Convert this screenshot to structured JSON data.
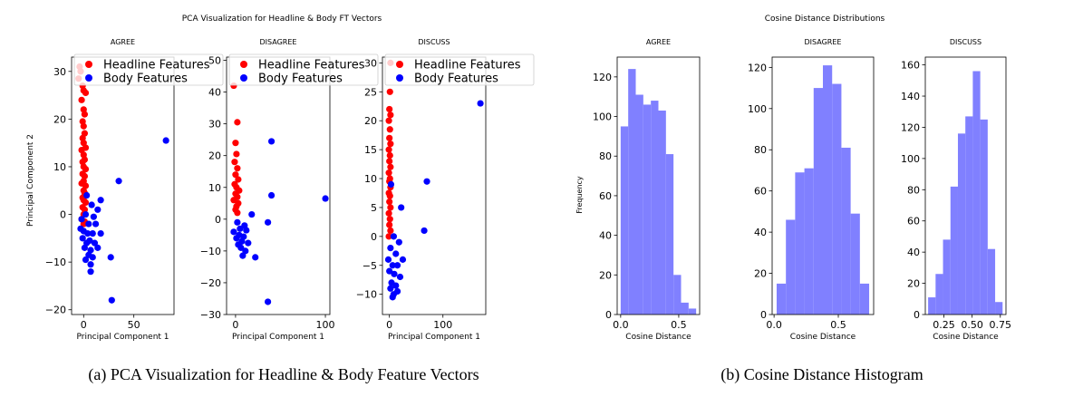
{
  "pca_figure": {
    "title": "PCA Visualization for Headline & Body FT Vectors",
    "xlabel": "Principal Component 1",
    "ylabel": "Principal Component 2",
    "legend": {
      "headline": "Headline Features",
      "body": "Body Features"
    },
    "colors": {
      "headline": "#ff0000",
      "body": "#0000ff"
    }
  },
  "hist_figure": {
    "title": "Cosine Distance Distributions",
    "xlabel": "Cosine Distance",
    "ylabel": "Frequency",
    "color": "#8080ff"
  },
  "captions": {
    "a": "(a) PCA Visualization for Headline & Body Feature Vectors",
    "b": "(b) Cosine Distance Histogram"
  },
  "chart_data": [
    {
      "type": "scatter",
      "title": "AGREE",
      "xlim": [
        -12,
        90
      ],
      "ylim": [
        -21,
        33
      ],
      "xticks": [
        0,
        50
      ],
      "yticks": [
        -20,
        -10,
        0,
        10,
        20,
        30
      ],
      "legend_position": "top-right",
      "series": [
        {
          "name": "Headline Features",
          "points": [
            [
              -4,
              31
            ],
            [
              -3,
              30
            ],
            [
              -5,
              28.5
            ],
            [
              -1,
              27
            ],
            [
              0,
              26
            ],
            [
              2,
              25.5
            ],
            [
              -2,
              24
            ],
            [
              0,
              22
            ],
            [
              1,
              21
            ],
            [
              -1,
              19.5
            ],
            [
              0,
              18.5
            ],
            [
              1,
              17
            ],
            [
              -1,
              16
            ],
            [
              0,
              15
            ],
            [
              2,
              14
            ],
            [
              -2,
              13.5
            ],
            [
              0,
              12.5
            ],
            [
              1,
              11.5
            ],
            [
              -1,
              11
            ],
            [
              0,
              10
            ],
            [
              2,
              9.5
            ],
            [
              -1,
              8.5
            ],
            [
              1,
              8
            ],
            [
              0,
              7
            ],
            [
              -2,
              6.5
            ],
            [
              2,
              6
            ],
            [
              0,
              5
            ],
            [
              1,
              4.5
            ],
            [
              -1,
              3.5
            ],
            [
              0,
              3
            ],
            [
              2,
              2.5
            ],
            [
              -1,
              1.5
            ],
            [
              1,
              1
            ],
            [
              0,
              0
            ],
            [
              -2,
              -1
            ],
            [
              1,
              -1.5
            ],
            [
              0,
              -2
            ]
          ]
        },
        {
          "name": "Body Features",
          "points": [
            [
              82,
              15.5
            ],
            [
              35,
              7
            ],
            [
              17,
              3
            ],
            [
              3,
              4
            ],
            [
              8,
              2
            ],
            [
              14,
              1
            ],
            [
              2,
              0
            ],
            [
              10,
              -0.5
            ],
            [
              -2,
              -1
            ],
            [
              5,
              -2
            ],
            [
              12,
              -2
            ],
            [
              -3,
              -3
            ],
            [
              0,
              -3.5
            ],
            [
              4,
              -4
            ],
            [
              9,
              -4
            ],
            [
              17,
              -4
            ],
            [
              -1,
              -5
            ],
            [
              6,
              -5.5
            ],
            [
              3,
              -6
            ],
            [
              11,
              -6
            ],
            [
              1,
              -7
            ],
            [
              7,
              -7.5
            ],
            [
              14,
              -7
            ],
            [
              5,
              -8.5
            ],
            [
              9,
              -9
            ],
            [
              2,
              -9.5
            ],
            [
              7,
              -10.5
            ],
            [
              27,
              -9
            ],
            [
              7,
              -12
            ],
            [
              28,
              -18
            ]
          ]
        }
      ]
    },
    {
      "type": "scatter",
      "title": "DISAGREE",
      "xlim": [
        -10,
        105
      ],
      "ylim": [
        -30,
        51
      ],
      "xticks": [
        0,
        100
      ],
      "yticks": [
        -30,
        -20,
        -10,
        0,
        10,
        20,
        30,
        40,
        50
      ],
      "legend_position": "top-right",
      "series": [
        {
          "name": "Headline Features",
          "points": [
            [
              -2,
              42
            ],
            [
              2,
              30.5
            ],
            [
              0,
              24
            ],
            [
              1,
              20.5
            ],
            [
              -1,
              18
            ],
            [
              2,
              16
            ],
            [
              0,
              14
            ],
            [
              3,
              12.5
            ],
            [
              -1,
              11
            ],
            [
              1,
              10
            ],
            [
              4,
              9
            ],
            [
              0,
              8
            ],
            [
              2,
              7
            ],
            [
              -2,
              6
            ],
            [
              3,
              5
            ],
            [
              1,
              4
            ],
            [
              0,
              3
            ],
            [
              2,
              2
            ]
          ]
        },
        {
          "name": "Body Features",
          "points": [
            [
              40,
              24.5
            ],
            [
              40,
              7.5
            ],
            [
              100,
              6.5
            ],
            [
              36,
              -1
            ],
            [
              18,
              1.5
            ],
            [
              10,
              -2
            ],
            [
              2,
              -1
            ],
            [
              5,
              -3
            ],
            [
              12,
              -3.5
            ],
            [
              -2,
              -4
            ],
            [
              4,
              -5
            ],
            [
              9,
              -5.5
            ],
            [
              1,
              -6
            ],
            [
              7,
              -7
            ],
            [
              14,
              -7.5
            ],
            [
              3,
              -8
            ],
            [
              6,
              -9
            ],
            [
              11,
              -10
            ],
            [
              8,
              -11.5
            ],
            [
              22,
              -12
            ],
            [
              36,
              -26
            ]
          ]
        }
      ]
    },
    {
      "type": "scatter",
      "title": "DISCUSS",
      "xlim": [
        -13,
        180
      ],
      "ylim": [
        -13.5,
        31
      ],
      "xticks": [
        0,
        100
      ],
      "yticks": [
        -10,
        -5,
        0,
        5,
        10,
        15,
        20,
        25,
        30
      ],
      "legend_position": "top-right",
      "series": [
        {
          "name": "Headline Features",
          "points": [
            [
              2,
              30
            ],
            [
              1,
              25
            ],
            [
              0,
              22
            ],
            [
              2,
              21
            ],
            [
              -1,
              20
            ],
            [
              1,
              18.5
            ],
            [
              0,
              17
            ],
            [
              2,
              16
            ],
            [
              -1,
              15
            ],
            [
              1,
              14
            ],
            [
              0,
              13
            ],
            [
              2,
              12
            ],
            [
              -1,
              11
            ],
            [
              1,
              10
            ],
            [
              0,
              9.5
            ],
            [
              2,
              8.5
            ],
            [
              -1,
              7.5
            ],
            [
              1,
              7
            ],
            [
              0,
              6
            ],
            [
              2,
              5
            ],
            [
              -1,
              4
            ],
            [
              1,
              3
            ],
            [
              0,
              2
            ],
            [
              2,
              1
            ],
            [
              -1,
              0
            ]
          ]
        },
        {
          "name": "Body Features",
          "points": [
            [
              170,
              23
            ],
            [
              70,
              9.5
            ],
            [
              3,
              9
            ],
            [
              22,
              5
            ],
            [
              65,
              1
            ],
            [
              8,
              0
            ],
            [
              18,
              -1
            ],
            [
              2,
              -2
            ],
            [
              12,
              -3
            ],
            [
              25,
              -4
            ],
            [
              -2,
              -4
            ],
            [
              6,
              -5
            ],
            [
              15,
              -5
            ],
            [
              0,
              -6
            ],
            [
              9,
              -6.5
            ],
            [
              20,
              -7
            ],
            [
              4,
              -8
            ],
            [
              12,
              -8.5
            ],
            [
              2,
              -9
            ],
            [
              8,
              -10
            ],
            [
              15,
              -9.5
            ],
            [
              6,
              -10.5
            ]
          ]
        }
      ]
    },
    {
      "type": "bar",
      "title": "AGREE",
      "bins": [
        [
          0.0,
          0.065,
          95
        ],
        [
          0.065,
          0.13,
          124
        ],
        [
          0.13,
          0.195,
          111
        ],
        [
          0.195,
          0.26,
          106
        ],
        [
          0.26,
          0.325,
          108
        ],
        [
          0.325,
          0.39,
          103
        ],
        [
          0.39,
          0.455,
          81
        ],
        [
          0.455,
          0.52,
          20
        ],
        [
          0.52,
          0.585,
          6
        ],
        [
          0.585,
          0.65,
          3
        ]
      ],
      "xlim": [
        -0.03,
        0.68
      ],
      "ylim": [
        0,
        130
      ],
      "xticks": [
        0.0,
        0.5
      ],
      "xticklabels": [
        "0.0",
        "0.5"
      ],
      "yticks": [
        0,
        20,
        40,
        60,
        80,
        100,
        120
      ]
    },
    {
      "type": "bar",
      "title": "DISAGREE",
      "bins": [
        [
          0.02,
          0.092,
          15
        ],
        [
          0.092,
          0.164,
          46
        ],
        [
          0.164,
          0.236,
          69
        ],
        [
          0.236,
          0.308,
          71
        ],
        [
          0.308,
          0.38,
          110
        ],
        [
          0.38,
          0.452,
          121
        ],
        [
          0.452,
          0.524,
          112
        ],
        [
          0.524,
          0.596,
          81
        ],
        [
          0.596,
          0.668,
          49
        ],
        [
          0.668,
          0.74,
          15
        ]
      ],
      "xlim": [
        -0.015,
        0.775
      ],
      "ylim": [
        0,
        125
      ],
      "xticks": [
        0.0,
        0.5
      ],
      "xticklabels": [
        "0.0",
        "0.5"
      ],
      "yticks": [
        0,
        20,
        40,
        60,
        80,
        100,
        120
      ]
    },
    {
      "type": "bar",
      "title": "DISCUSS",
      "bins": [
        [
          0.11,
          0.176,
          11
        ],
        [
          0.176,
          0.242,
          26
        ],
        [
          0.242,
          0.308,
          48
        ],
        [
          0.308,
          0.374,
          82
        ],
        [
          0.374,
          0.44,
          116
        ],
        [
          0.44,
          0.506,
          127
        ],
        [
          0.506,
          0.572,
          156
        ],
        [
          0.572,
          0.638,
          125
        ],
        [
          0.638,
          0.704,
          42
        ],
        [
          0.704,
          0.77,
          8
        ]
      ],
      "xlim": [
        0.085,
        0.8
      ],
      "ylim": [
        0,
        165
      ],
      "xticks": [
        0.25,
        0.5,
        0.75
      ],
      "xticklabels": [
        "0.25",
        "0.50",
        "0.75"
      ],
      "yticks": [
        0,
        20,
        40,
        60,
        80,
        100,
        120,
        140,
        160
      ]
    }
  ]
}
